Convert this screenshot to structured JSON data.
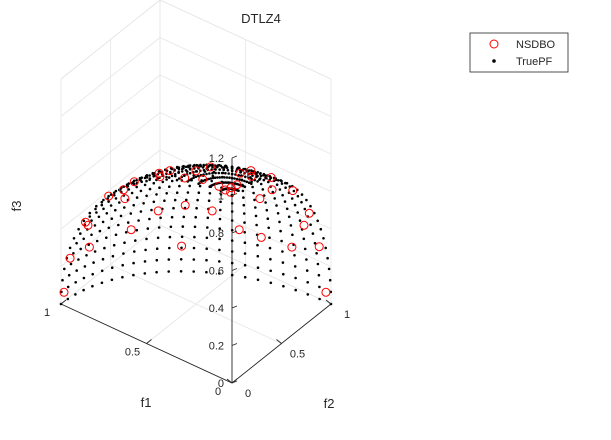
{
  "chart_data": {
    "type": "scatter3d",
    "title": "DTLZ4",
    "xlabel": "f1",
    "ylabel": "f2",
    "zlabel": "f3",
    "xlim": [
      0,
      1
    ],
    "ylim": [
      0,
      1
    ],
    "zlim": [
      0,
      1.2
    ],
    "x_ticks": [
      "0",
      "0.5",
      "1"
    ],
    "y_ticks": [
      "0",
      "0.5",
      "1"
    ],
    "z_ticks": [
      "0",
      "0.2",
      "0.4",
      "0.6",
      "0.8",
      "1",
      "1.2"
    ],
    "grid": true,
    "view": "3d-box",
    "legend_position": "top-right",
    "colors": {
      "nsdbo": "#ff0000",
      "truepf": "#000000",
      "axis": "#262626",
      "grid": "#e6e6e6"
    },
    "series": [
      {
        "name": "NSDBO",
        "marker": "open-circle",
        "surface": "unit-sphere-octant",
        "points": [
          [
            0.02,
            0.02,
            1.0
          ],
          [
            0.05,
            0.02,
            1.0
          ],
          [
            0.04,
            0.06,
            1.0
          ],
          [
            0.1,
            0.04,
            0.99
          ],
          [
            0.04,
            0.12,
            0.99
          ],
          [
            0.2,
            0.05,
            0.98
          ],
          [
            0.3,
            0.04,
            0.95
          ],
          [
            0.45,
            0.05,
            0.89
          ],
          [
            0.6,
            0.05,
            0.8
          ],
          [
            0.75,
            0.05,
            0.66
          ],
          [
            0.88,
            0.04,
            0.47
          ],
          [
            0.97,
            0.04,
            0.24
          ],
          [
            1.0,
            0.03,
            0.05
          ],
          [
            0.06,
            0.3,
            0.95
          ],
          [
            0.06,
            0.5,
            0.86
          ],
          [
            0.05,
            0.7,
            0.71
          ],
          [
            0.04,
            0.85,
            0.53
          ],
          [
            0.04,
            0.95,
            0.31
          ],
          [
            0.03,
            1.0,
            0.05
          ],
          [
            0.3,
            0.3,
            0.9
          ],
          [
            0.5,
            0.5,
            0.71
          ],
          [
            0.7,
            0.7,
            0.14
          ],
          [
            0.6,
            0.3,
            0.74
          ],
          [
            0.3,
            0.6,
            0.74
          ],
          [
            0.8,
            0.3,
            0.52
          ],
          [
            0.3,
            0.8,
            0.52
          ],
          [
            0.2,
            0.95,
            0.24
          ],
          [
            0.95,
            0.2,
            0.24
          ],
          [
            0.45,
            0.85,
            0.27
          ],
          [
            0.85,
            0.45,
            0.27
          ],
          [
            0.55,
            0.75,
            0.37
          ],
          [
            0.75,
            0.55,
            0.37
          ],
          [
            0.15,
            0.45,
            0.88
          ],
          [
            0.45,
            0.15,
            0.88
          ],
          [
            0.65,
            0.65,
            0.4
          ],
          [
            0.2,
            0.75,
            0.63
          ],
          [
            0.75,
            0.2,
            0.63
          ],
          [
            0.9,
            0.1,
            0.42
          ],
          [
            0.1,
            0.9,
            0.42
          ],
          [
            0.35,
            0.9,
            0.25
          ]
        ]
      },
      {
        "name": "TruePF",
        "marker": "dot",
        "surface": "unit-sphere-octant",
        "grid_steps": 24
      }
    ]
  }
}
